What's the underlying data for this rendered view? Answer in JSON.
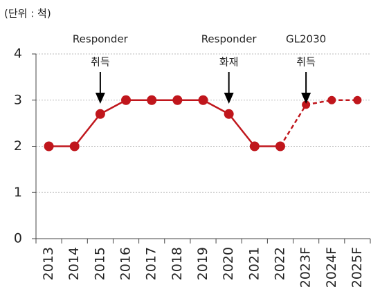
{
  "chart_data": {
    "type": "line",
    "unit_label": "(단위 : 척)",
    "categories": [
      "2013",
      "2014",
      "2015",
      "2016",
      "2017",
      "2018",
      "2019",
      "2020",
      "2021",
      "2022",
      "2023F",
      "2024F",
      "2025F"
    ],
    "values": [
      2,
      2,
      2.7,
      3,
      3,
      3,
      3,
      2.7,
      2,
      2,
      2.9,
      3,
      3
    ],
    "color": "#c0161c",
    "forecast_from": "2022",
    "ylim": [
      0,
      4
    ],
    "yticks": [
      0,
      1,
      2,
      3,
      4
    ],
    "grid": true,
    "annotations": [
      {
        "at": "2015",
        "lines": [
          "Responder",
          "취득"
        ]
      },
      {
        "at": "2020",
        "lines": [
          "Responder",
          "화재"
        ]
      },
      {
        "at": "2023F",
        "lines": [
          "GL2030",
          "취득"
        ]
      }
    ]
  }
}
